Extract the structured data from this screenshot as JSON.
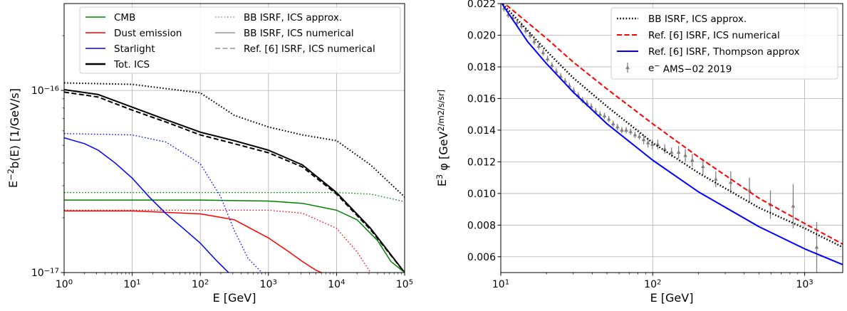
{
  "chart_data": [
    {
      "type": "line",
      "xlabel": "E [GeV]",
      "ylabel": "E^{-2}b(E) [1/GeV/s]",
      "xscale": "log",
      "yscale": "log",
      "xlim": [
        1,
        100000
      ],
      "ylim": [
        1e-17,
        3e-16
      ],
      "grid": true,
      "legend_position": "top",
      "x_ticks": [
        {
          "value": 1,
          "label": "10^0"
        },
        {
          "value": 10,
          "label": "10^1"
        },
        {
          "value": 100,
          "label": "10^2"
        },
        {
          "value": 1000,
          "label": "10^3"
        },
        {
          "value": 10000,
          "label": "10^4"
        },
        {
          "value": 100000,
          "label": "10^5"
        }
      ],
      "y_ticks": [
        {
          "value": 1e-17,
          "label": "10^{-17}"
        },
        {
          "value": 1e-16,
          "label": "10^{-16}"
        }
      ],
      "legend": [
        {
          "label": "CMB",
          "color": "#008000",
          "dash": "solid",
          "width": 1.5
        },
        {
          "label": "Dust emission",
          "color": "#ff0000",
          "dash": "solid",
          "width": 1.5
        },
        {
          "label": "Starlight",
          "color": "#0000ff",
          "dash": "solid",
          "width": 1.5
        },
        {
          "label": "Tot. ICS",
          "color": "#000000",
          "dash": "solid",
          "width": 2.5
        },
        {
          "label": "BB ISRF, ICS approx.",
          "color": "#808080",
          "dash": "dotted",
          "width": 1.3
        },
        {
          "label": "BB ISRF, ICS numerical",
          "color": "#808080",
          "dash": "solid",
          "width": 1.3
        },
        {
          "label": "Ref. [6] ISRF, ICS numerical",
          "color": "#808080",
          "dash": "dashed",
          "width": 1.3
        }
      ],
      "series": [
        {
          "color": "#000000",
          "dash": "dotted",
          "width": 2,
          "x": [
            1,
            10,
            100,
            316,
            1000,
            3162,
            10000,
            31623,
            100000
          ],
          "y": [
            1.1e-16,
            1.08e-16,
            9.7e-17,
            7.3e-17,
            6.3e-17,
            5.7e-17,
            5.3e-17,
            3.9e-17,
            2.6e-17
          ]
        },
        {
          "color": "#000000",
          "dash": "solid",
          "width": 2,
          "x": [
            1,
            3.16,
            10,
            31.6,
            100,
            316,
            1000,
            3162,
            10000,
            31623,
            100000
          ],
          "y": [
            1.01e-16,
            9.5e-17,
            8.1e-17,
            6.9e-17,
            5.9e-17,
            5.3e-17,
            4.7e-17,
            3.9e-17,
            2.75e-17,
            1.75e-17,
            1e-17
          ]
        },
        {
          "color": "#000000",
          "dash": "dashed",
          "width": 2,
          "x": [
            1,
            3.16,
            10,
            31.6,
            100,
            316,
            1000,
            3162,
            10000,
            31623,
            100000
          ],
          "y": [
            9.8e-17,
            9.2e-17,
            7.8e-17,
            6.7e-17,
            5.7e-17,
            5.1e-17,
            4.55e-17,
            3.8e-17,
            2.7e-17,
            1.72e-17,
            1e-17
          ]
        },
        {
          "color": "#008000",
          "dash": "dotted",
          "width": 1.3,
          "x": [
            1,
            100,
            10000,
            31623,
            100000
          ],
          "y": [
            2.75e-17,
            2.75e-17,
            2.75e-17,
            2.7e-17,
            2.45e-17
          ]
        },
        {
          "color": "#008000",
          "dash": "solid",
          "width": 1.5,
          "x": [
            1,
            100,
            1000,
            3162,
            10000,
            20000,
            40000,
            63000,
            100000
          ],
          "y": [
            2.5e-17,
            2.5e-17,
            2.47e-17,
            2.4e-17,
            2.2e-17,
            1.95e-17,
            1.5e-17,
            1.15e-17,
            1e-17
          ]
        },
        {
          "color": "#ff0000",
          "dash": "dotted",
          "width": 1.3,
          "x": [
            1,
            10,
            100,
            1000,
            3162,
            10000,
            20000,
            31623
          ],
          "y": [
            2.2e-17,
            2.2e-17,
            2.2e-17,
            2.2e-17,
            2.12e-17,
            1.75e-17,
            1.3e-17,
            1e-17
          ]
        },
        {
          "color": "#ff0000",
          "dash": "solid",
          "width": 1.5,
          "x": [
            1,
            10,
            100,
            316,
            1000,
            2000,
            3162,
            5000,
            6000
          ],
          "y": [
            2.18e-17,
            2.18e-17,
            2.1e-17,
            1.95e-17,
            1.55e-17,
            1.3e-17,
            1.15e-17,
            1.03e-17,
            1e-17
          ]
        },
        {
          "color": "#0000ff",
          "dash": "dotted",
          "width": 1.3,
          "x": [
            1,
            10,
            31.6,
            100,
            200,
            316,
            500,
            800
          ],
          "y": [
            5.8e-17,
            5.7e-17,
            5.2e-17,
            3.95e-17,
            2.6e-17,
            1.7e-17,
            1.2e-17,
            1e-17
          ]
        },
        {
          "color": "#0000ff",
          "dash": "solid",
          "width": 1.5,
          "x": [
            1,
            2,
            3.16,
            5.6,
            10,
            17.8,
            31.6,
            56,
            100,
            178,
            260
          ],
          "y": [
            5.5e-17,
            5.1e-17,
            4.7e-17,
            4e-17,
            3.3e-17,
            2.6e-17,
            2.1e-17,
            1.75e-17,
            1.45e-17,
            1.15e-17,
            1e-17
          ]
        }
      ]
    },
    {
      "type": "line",
      "xlabel": "E [GeV]",
      "ylabel": "E^3 φ [GeV^2/m^2/s/sr]",
      "xscale": "log",
      "yscale": "linear",
      "xlim": [
        10,
        1780
      ],
      "ylim": [
        0.005,
        0.022
      ],
      "grid": true,
      "legend_position": "top-right",
      "x_ticks": [
        {
          "value": 10,
          "label": "10^1"
        },
        {
          "value": 100,
          "label": "10^2"
        },
        {
          "value": 1000,
          "label": "10^3"
        }
      ],
      "y_ticks": [
        {
          "value": 0.006,
          "label": "0.006"
        },
        {
          "value": 0.008,
          "label": "0.008"
        },
        {
          "value": 0.01,
          "label": "0.010"
        },
        {
          "value": 0.012,
          "label": "0.012"
        },
        {
          "value": 0.014,
          "label": "0.014"
        },
        {
          "value": 0.016,
          "label": "0.016"
        },
        {
          "value": 0.018,
          "label": "0.018"
        },
        {
          "value": 0.02,
          "label": "0.020"
        },
        {
          "value": 0.022,
          "label": "0.022"
        }
      ],
      "series": [
        {
          "name": "BB ISRF, ICS approx.",
          "color": "#000000",
          "dash": "dotted",
          "width": 2.5,
          "x": [
            10,
            15,
            20,
            30,
            50,
            100,
            200,
            500,
            1000,
            1780
          ],
          "y": [
            0.0221,
            0.0203,
            0.019,
            0.0173,
            0.0155,
            0.0132,
            0.0113,
            0.0091,
            0.0078,
            0.0066
          ]
        },
        {
          "name": "Ref. [6] ISRF, ICS numerical",
          "color": "#ff0000",
          "dash": "dashed",
          "width": 2,
          "x": [
            10,
            15,
            20,
            30,
            50,
            100,
            200,
            500,
            1000,
            1780
          ],
          "y": [
            0.0222,
            0.0208,
            0.0198,
            0.0183,
            0.0166,
            0.0144,
            0.0123,
            0.0097,
            0.0081,
            0.0068
          ]
        },
        {
          "name": "Ref. [6] ISRF, Thompson approx",
          "color": "#0000ff",
          "dash": "solid",
          "width": 2,
          "x": [
            10,
            15,
            20,
            30,
            50,
            100,
            200,
            500,
            1000,
            1780
          ],
          "y": [
            0.0221,
            0.0196,
            0.0182,
            0.0164,
            0.0144,
            0.0121,
            0.0101,
            0.0079,
            0.0065,
            0.0055
          ]
        }
      ],
      "errorbars": {
        "name": "e^- AMS-02 2019",
        "color": "#808080",
        "x": [
          10.5,
          11.2,
          12.0,
          12.8,
          13.7,
          14.6,
          15.6,
          16.6,
          17.8,
          19.0,
          20.3,
          21.7,
          23.2,
          24.8,
          26.5,
          28.3,
          30.2,
          32.3,
          34.5,
          36.9,
          39.4,
          42.1,
          45.0,
          48.1,
          51.4,
          54.9,
          58.6,
          62.6,
          66.9,
          71.5,
          76.4,
          81.6,
          87.2,
          93.1,
          99.5,
          108,
          120,
          133,
          148,
          164,
          182,
          214,
          260,
          326,
          433,
          595,
          840,
          1200
        ],
        "y": [
          0.0217,
          0.0213,
          0.0211,
          0.0208,
          0.0206,
          0.0203,
          0.02,
          0.0196,
          0.0193,
          0.0189,
          0.0185,
          0.0181,
          0.0177,
          0.0174,
          0.0171,
          0.0168,
          0.0165,
          0.0162,
          0.0159,
          0.0157,
          0.0155,
          0.0152,
          0.015,
          0.0149,
          0.0147,
          0.0144,
          0.0142,
          0.014,
          0.014,
          0.0139,
          0.0137,
          0.0136,
          0.0134,
          0.0132,
          0.0131,
          0.0131,
          0.0128,
          0.0126,
          0.0126,
          0.0124,
          0.0121,
          0.0117,
          0.0109,
          0.0107,
          0.0102,
          0.0093,
          0.0092,
          0.0066
        ],
        "err": [
          0.0002,
          0.0002,
          0.0002,
          0.0002,
          0.0002,
          0.0002,
          0.0002,
          0.0002,
          0.0002,
          0.0002,
          0.0002,
          0.0002,
          0.0002,
          0.0002,
          0.0002,
          0.0002,
          0.0002,
          0.0002,
          0.0002,
          0.0002,
          0.0002,
          0.0002,
          0.0002,
          0.0002,
          0.0002,
          0.0002,
          0.0002,
          0.0002,
          0.0002,
          0.0002,
          0.0002,
          0.0002,
          0.0003,
          0.0003,
          0.0003,
          0.0003,
          0.0003,
          0.0003,
          0.0004,
          0.0004,
          0.0004,
          0.0005,
          0.0005,
          0.0007,
          0.0008,
          0.0009,
          0.0014,
          0.0016
        ]
      }
    }
  ]
}
